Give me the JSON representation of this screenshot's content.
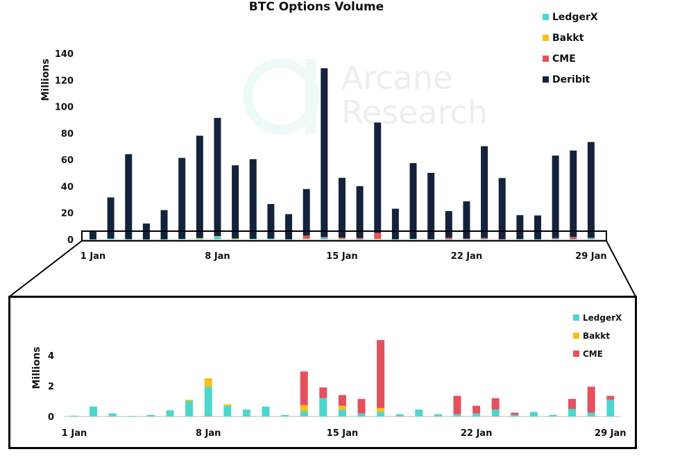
{
  "chart_data": [
    {
      "type": "bar",
      "stacked": true,
      "title": "BTC Options Volume",
      "ylabel": "Millions",
      "xlabel": "",
      "ylim": [
        0,
        140
      ],
      "yticks": [
        0,
        20,
        40,
        60,
        80,
        100,
        120,
        140
      ],
      "xtick_labels": [
        "1 Jan",
        "8 Jan",
        "15 Jan",
        "22 Jan",
        "29 Jan"
      ],
      "legend_placement": "top-right",
      "grid": false,
      "watermark": "Arcane Research",
      "categories": [
        "1 Jan",
        "2 Jan",
        "3 Jan",
        "4 Jan",
        "5 Jan",
        "6 Jan",
        "7 Jan",
        "8 Jan",
        "9 Jan",
        "10 Jan",
        "11 Jan",
        "12 Jan",
        "13 Jan",
        "14 Jan",
        "15 Jan",
        "16 Jan",
        "17 Jan",
        "18 Jan",
        "19 Jan",
        "20 Jan",
        "21 Jan",
        "22 Jan",
        "23 Jan",
        "24 Jan",
        "25 Jan",
        "26 Jan",
        "27 Jan",
        "28 Jan",
        "29 Jan"
      ],
      "series": [
        {
          "name": "LedgerX",
          "color": "#4dd6cf",
          "values": [
            0.05,
            0.65,
            0.2,
            0.02,
            0.1,
            0.4,
            1.0,
            1.95,
            0.7,
            0.45,
            0.65,
            0.1,
            0.35,
            1.2,
            0.45,
            0.2,
            0.3,
            0.15,
            0.45,
            0.15,
            0.15,
            0.2,
            0.45,
            0.1,
            0.3,
            0.1,
            0.5,
            0.25,
            1.1
          ]
        },
        {
          "name": "Bakkt",
          "color": "#f5c116",
          "values": [
            0,
            0,
            0,
            0,
            0,
            0,
            0.1,
            0.55,
            0.1,
            0,
            0,
            0,
            0.4,
            0,
            0.25,
            0,
            0.25,
            0,
            0,
            0,
            0,
            0,
            0,
            0,
            0,
            0,
            0,
            0,
            0
          ]
        },
        {
          "name": "CME",
          "color": "#e5505d",
          "values": [
            0,
            0,
            0,
            0,
            0,
            0,
            0,
            0,
            0,
            0,
            0,
            0,
            2.2,
            0.7,
            0.7,
            0.95,
            4.45,
            0,
            0,
            0,
            1.2,
            0.5,
            0.75,
            0.15,
            0,
            0,
            0.65,
            1.7,
            0.25
          ]
        },
        {
          "name": "Deribit",
          "color": "#13233b",
          "values": [
            6,
            31,
            64,
            12,
            22,
            61,
            77,
            89,
            55,
            60,
            26,
            19,
            35,
            127,
            45,
            39,
            83,
            23,
            57,
            50,
            20,
            28,
            69,
            46,
            18,
            18,
            62,
            65,
            72
          ]
        }
      ]
    },
    {
      "type": "bar",
      "stacked": true,
      "title": "",
      "ylabel": "Millions",
      "ylim": [
        0,
        5.2
      ],
      "yticks": [
        0,
        2,
        4
      ],
      "xtick_labels": [
        "1 Jan",
        "8 Jan",
        "15 Jan",
        "22 Jan",
        "29 Jan"
      ],
      "legend_placement": "top-right",
      "grid": false,
      "series_from_first_chart": [
        "LedgerX",
        "Bakkt",
        "CME"
      ]
    }
  ]
}
